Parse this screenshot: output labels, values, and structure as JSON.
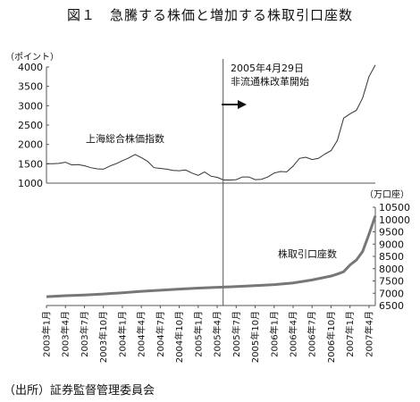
{
  "figure": {
    "title": "図１　急騰する株価と増加する株取引口座数",
    "source": "（出所）証券監督管理委員会"
  },
  "chart_data": [
    {
      "type": "line",
      "series_name": "上海総合株価指数",
      "ylabel": "（ポイント）",
      "ylim": [
        1000,
        4000
      ],
      "yticks": [
        1000,
        1500,
        2000,
        2500,
        3000,
        3500,
        4000
      ],
      "x_start": "2003-01",
      "x_end": "2007-05",
      "annotation": {
        "date_label": "2005年4月29日",
        "event_label": "非流通株改革開始",
        "x": "2005-04-29"
      },
      "points": [
        [
          "2003-01",
          1500
        ],
        [
          "2003-02",
          1500
        ],
        [
          "2003-03",
          1510
        ],
        [
          "2003-04",
          1540
        ],
        [
          "2003-05",
          1470
        ],
        [
          "2003-06",
          1480
        ],
        [
          "2003-07",
          1450
        ],
        [
          "2003-08",
          1400
        ],
        [
          "2003-09",
          1370
        ],
        [
          "2003-10",
          1360
        ],
        [
          "2003-11",
          1440
        ],
        [
          "2003-12",
          1500
        ],
        [
          "2004-01",
          1580
        ],
        [
          "2004-02",
          1650
        ],
        [
          "2004-03",
          1740
        ],
        [
          "2004-04",
          1660
        ],
        [
          "2004-05",
          1560
        ],
        [
          "2004-06",
          1400
        ],
        [
          "2004-07",
          1380
        ],
        [
          "2004-08",
          1360
        ],
        [
          "2004-09",
          1330
        ],
        [
          "2004-10",
          1320
        ],
        [
          "2004-11",
          1340
        ],
        [
          "2004-12",
          1260
        ],
        [
          "2005-01",
          1200
        ],
        [
          "2005-02",
          1290
        ],
        [
          "2005-03",
          1180
        ],
        [
          "2005-04",
          1150
        ],
        [
          "2005-05",
          1080
        ],
        [
          "2005-06",
          1080
        ],
        [
          "2005-07",
          1090
        ],
        [
          "2005-08",
          1160
        ],
        [
          "2005-09",
          1160
        ],
        [
          "2005-10",
          1090
        ],
        [
          "2005-11",
          1100
        ],
        [
          "2005-12",
          1160
        ],
        [
          "2006-01",
          1260
        ],
        [
          "2006-02",
          1300
        ],
        [
          "2006-03",
          1290
        ],
        [
          "2006-04",
          1440
        ],
        [
          "2006-05",
          1640
        ],
        [
          "2006-06",
          1670
        ],
        [
          "2006-07",
          1610
        ],
        [
          "2006-08",
          1640
        ],
        [
          "2006-09",
          1750
        ],
        [
          "2006-10",
          1840
        ],
        [
          "2006-11",
          2100
        ],
        [
          "2006-12",
          2680
        ],
        [
          "2007-01",
          2790
        ],
        [
          "2007-02",
          2880
        ],
        [
          "2007-03",
          3200
        ],
        [
          "2007-04",
          3750
        ],
        [
          "2007-05",
          4050
        ]
      ]
    },
    {
      "type": "line",
      "series_name": "株取引口座数",
      "ylabel": "（万口座）",
      "ylim": [
        6500,
        10500
      ],
      "yticks": [
        6500,
        7000,
        7500,
        8000,
        8500,
        9000,
        9500,
        10000,
        10500
      ],
      "x_start": "2003-01",
      "x_end": "2007-05",
      "xtick_labels": [
        "2003年1月",
        "2003年4月",
        "2003年7月",
        "2003年10月",
        "2004年1月",
        "2004年4月",
        "2004年7月",
        "2004年10月",
        "2005年1月",
        "2005年4月",
        "2005年7月",
        "2005年10月",
        "2006年1月",
        "2006年4月",
        "2006年7月",
        "2006年10月",
        "2007年1月",
        "2007年4月"
      ],
      "points": [
        [
          "2003-01",
          6860
        ],
        [
          "2003-04",
          6900
        ],
        [
          "2003-07",
          6930
        ],
        [
          "2003-10",
          6970
        ],
        [
          "2004-01",
          7020
        ],
        [
          "2004-04",
          7080
        ],
        [
          "2004-07",
          7120
        ],
        [
          "2004-10",
          7170
        ],
        [
          "2005-01",
          7210
        ],
        [
          "2005-04",
          7240
        ],
        [
          "2005-07",
          7270
        ],
        [
          "2005-10",
          7310
        ],
        [
          "2006-01",
          7350
        ],
        [
          "2006-04",
          7420
        ],
        [
          "2006-07",
          7540
        ],
        [
          "2006-10",
          7700
        ],
        [
          "2006-11",
          7780
        ],
        [
          "2006-12",
          7880
        ],
        [
          "2007-01",
          8150
        ],
        [
          "2007-02",
          8350
        ],
        [
          "2007-03",
          8700
        ],
        [
          "2007-04",
          9400
        ],
        [
          "2007-05",
          10150
        ]
      ]
    }
  ]
}
